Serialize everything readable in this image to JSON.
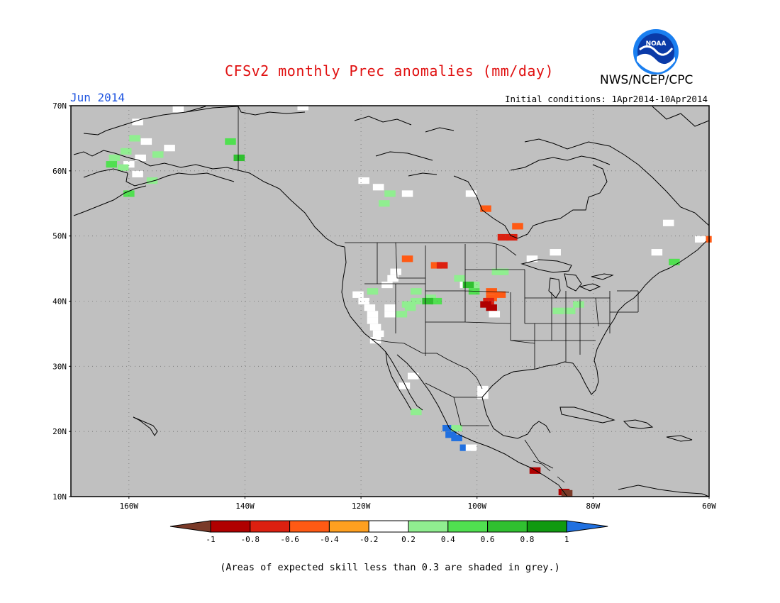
{
  "title": "CFSv2 monthly Prec anomalies (mm/day)",
  "agency": "NWS/NCEP/CPC",
  "logo_text": "NOAA",
  "valid_month": "Jun 2014",
  "initial_conditions": "Initial conditions: 1Apr2014-10Apr2014",
  "footnote": "(Areas of expected skill less than 0.3 are shaded in grey.)",
  "map": {
    "lat_range": [
      10,
      70
    ],
    "lon_range": [
      -170,
      -60
    ],
    "lat_ticks": [
      "70N",
      "60N",
      "50N",
      "40N",
      "30N",
      "20N",
      "10N"
    ],
    "lon_ticks": [
      "160W",
      "140W",
      "120W",
      "100W",
      "80W",
      "60W"
    ],
    "lat_tick_values": [
      70,
      60,
      50,
      40,
      30,
      20,
      10
    ],
    "lon_tick_values": [
      -160,
      -140,
      -120,
      -100,
      -80,
      -60
    ],
    "background_color": "#c0c0c0",
    "grid": "dotted"
  },
  "colorbar": {
    "labels": [
      "-1",
      "-0.8",
      "-0.6",
      "-0.4",
      "-0.2",
      "0.2",
      "0.4",
      "0.6",
      "0.8",
      "1"
    ],
    "colors": [
      "#7a3a28",
      "#b00000",
      "#dc2010",
      "#ff5a14",
      "#ffa020",
      "#ffffff",
      "#90ee90",
      "#50e050",
      "#30c030",
      "#109a10",
      "#2070e0"
    ]
  },
  "anomaly_cells": [
    {
      "lat": 69.5,
      "lon": -151.5,
      "v": 0
    },
    {
      "lat": 67.5,
      "lon": -158.5,
      "v": 0
    },
    {
      "lat": 65.0,
      "lon": -159.0,
      "v": 0.3
    },
    {
      "lat": 64.5,
      "lon": -157.0,
      "v": 0
    },
    {
      "lat": 63.0,
      "lon": -160.5,
      "v": 0.3
    },
    {
      "lat": 62.0,
      "lon": -158.0,
      "v": 0
    },
    {
      "lat": 61.0,
      "lon": -160.0,
      "v": 0
    },
    {
      "lat": 62.0,
      "lon": -162.5,
      "v": 0.3
    },
    {
      "lat": 61.0,
      "lon": -163.0,
      "v": 0.5
    },
    {
      "lat": 60.5,
      "lon": -161.0,
      "v": 0.3
    },
    {
      "lat": 59.5,
      "lon": -158.5,
      "v": 0
    },
    {
      "lat": 58.5,
      "lon": -156.0,
      "v": 0.3
    },
    {
      "lat": 56.5,
      "lon": -160.0,
      "v": 0.5
    },
    {
      "lat": 63.5,
      "lon": -153.0,
      "v": 0
    },
    {
      "lat": 62.5,
      "lon": -155.0,
      "v": 0.3
    },
    {
      "lat": 64.5,
      "lon": -142.5,
      "v": 0.5
    },
    {
      "lat": 62.0,
      "lon": -141.0,
      "v": 0.7
    },
    {
      "lat": 69.8,
      "lon": -130.0,
      "v": 0
    },
    {
      "lat": 58.5,
      "lon": -119.5,
      "v": 0
    },
    {
      "lat": 57.5,
      "lon": -117.0,
      "v": 0
    },
    {
      "lat": 56.5,
      "lon": -115.0,
      "v": 0.3
    },
    {
      "lat": 55.0,
      "lon": -116.0,
      "v": 0.3
    },
    {
      "lat": 56.5,
      "lon": -112.0,
      "v": 0
    },
    {
      "lat": 56.5,
      "lon": -101.0,
      "v": 0
    },
    {
      "lat": 54.2,
      "lon": -98.5,
      "v": -0.4
    },
    {
      "lat": 51.5,
      "lon": -93.0,
      "v": -0.4
    },
    {
      "lat": 49.8,
      "lon": -95.5,
      "v": -0.6
    },
    {
      "lat": 49.8,
      "lon": -94.0,
      "v": -0.6
    },
    {
      "lat": 46.5,
      "lon": -112.0,
      "v": -0.4
    },
    {
      "lat": 44.5,
      "lon": -114.0,
      "v": 0
    },
    {
      "lat": 43.5,
      "lon": -114.5,
      "v": 0
    },
    {
      "lat": 42.5,
      "lon": -115.5,
      "v": 0
    },
    {
      "lat": 41.5,
      "lon": -118.0,
      "v": 0.3
    },
    {
      "lat": 41.0,
      "lon": -120.5,
      "v": 0
    },
    {
      "lat": 40.0,
      "lon": -119.5,
      "v": 0
    },
    {
      "lat": 39.0,
      "lon": -118.5,
      "v": 0
    },
    {
      "lat": 38.0,
      "lon": -118.0,
      "v": 0
    },
    {
      "lat": 37.0,
      "lon": -118.0,
      "v": 0
    },
    {
      "lat": 36.0,
      "lon": -117.5,
      "v": 0
    },
    {
      "lat": 35.0,
      "lon": -117.0,
      "v": 0
    },
    {
      "lat": 34.0,
      "lon": -117.5,
      "v": 0
    },
    {
      "lat": 39.0,
      "lon": -115.0,
      "v": 0
    },
    {
      "lat": 38.0,
      "lon": -115.0,
      "v": 0
    },
    {
      "lat": 38.0,
      "lon": -113.0,
      "v": 0.3
    },
    {
      "lat": 39.5,
      "lon": -112.0,
      "v": 0.3
    },
    {
      "lat": 41.5,
      "lon": -110.5,
      "v": 0.3
    },
    {
      "lat": 40.0,
      "lon": -110.5,
      "v": 0.3
    },
    {
      "lat": 39.0,
      "lon": -111.5,
      "v": 0.3
    },
    {
      "lat": 40.5,
      "lon": -108.0,
      "v": 0.3
    },
    {
      "lat": 40.0,
      "lon": -107.0,
      "v": 0.5
    },
    {
      "lat": 40.0,
      "lon": -108.5,
      "v": 0.7
    },
    {
      "lat": 45.5,
      "lon": -107.0,
      "v": -0.4
    },
    {
      "lat": 45.5,
      "lon": -106.0,
      "v": -0.6
    },
    {
      "lat": 42.5,
      "lon": -102.0,
      "v": 0
    },
    {
      "lat": 43.5,
      "lon": -103.0,
      "v": 0.3
    },
    {
      "lat": 42.5,
      "lon": -100.5,
      "v": 0.3
    },
    {
      "lat": 42.5,
      "lon": -101.5,
      "v": 0.7
    },
    {
      "lat": 41.5,
      "lon": -100.5,
      "v": 0.5
    },
    {
      "lat": 44.5,
      "lon": -96.5,
      "v": 0.3
    },
    {
      "lat": 44.5,
      "lon": -95.5,
      "v": 0.3
    },
    {
      "lat": 41.5,
      "lon": -97.5,
      "v": -0.4
    },
    {
      "lat": 40.5,
      "lon": -97.5,
      "v": -0.4
    },
    {
      "lat": 40.0,
      "lon": -98.0,
      "v": -0.6
    },
    {
      "lat": 39.0,
      "lon": -97.5,
      "v": -0.9
    },
    {
      "lat": 39.5,
      "lon": -98.5,
      "v": -0.9
    },
    {
      "lat": 38.0,
      "lon": -97.0,
      "v": 0
    },
    {
      "lat": 41.0,
      "lon": -96.0,
      "v": -0.4
    },
    {
      "lat": 38.5,
      "lon": -86.0,
      "v": 0.3
    },
    {
      "lat": 38.5,
      "lon": -84.0,
      "v": 0.3
    },
    {
      "lat": 39.5,
      "lon": -82.5,
      "v": 0.3
    },
    {
      "lat": 46.5,
      "lon": -90.5,
      "v": 0
    },
    {
      "lat": 47.5,
      "lon": -86.5,
      "v": 0
    },
    {
      "lat": 46.0,
      "lon": -66.0,
      "v": 0.5
    },
    {
      "lat": 47.5,
      "lon": -69.0,
      "v": 0
    },
    {
      "lat": 49.5,
      "lon": -60.5,
      "v": -0.4
    },
    {
      "lat": 49.5,
      "lon": -61.5,
      "v": 0
    },
    {
      "lat": 52.0,
      "lon": -67.0,
      "v": 0
    },
    {
      "lat": 28.5,
      "lon": -111.0,
      "v": 0
    },
    {
      "lat": 27.0,
      "lon": -112.5,
      "v": 0
    },
    {
      "lat": 26.5,
      "lon": -99.0,
      "v": 0
    },
    {
      "lat": 25.5,
      "lon": -99.0,
      "v": 0
    },
    {
      "lat": 23.0,
      "lon": -110.5,
      "v": 0.3
    },
    {
      "lat": 20.5,
      "lon": -105.0,
      "v": 1.0
    },
    {
      "lat": 19.5,
      "lon": -104.5,
      "v": 1.0
    },
    {
      "lat": 19.0,
      "lon": -103.5,
      "v": 1.0
    },
    {
      "lat": 20.5,
      "lon": -103.5,
      "v": 0.3
    },
    {
      "lat": 17.5,
      "lon": -102.0,
      "v": 1.0
    },
    {
      "lat": 17.5,
      "lon": -101.0,
      "v": 0
    },
    {
      "lat": 14.0,
      "lon": -90.0,
      "v": -0.9
    },
    {
      "lat": 10.7,
      "lon": -85.0,
      "v": -0.9
    },
    {
      "lat": 10.5,
      "lon": -84.5,
      "v": -1.0
    }
  ]
}
